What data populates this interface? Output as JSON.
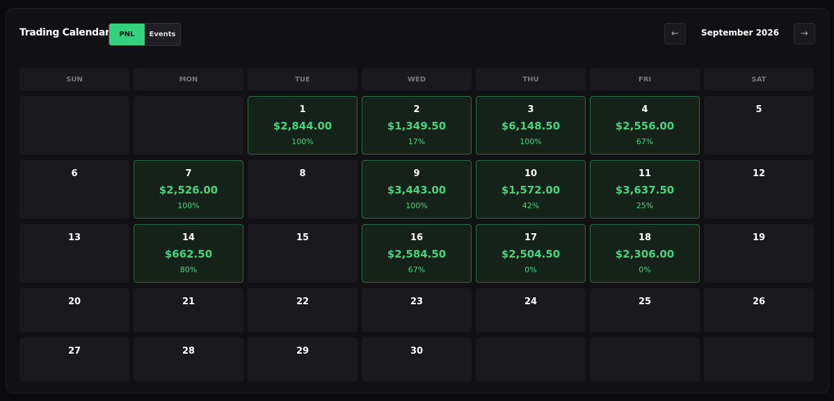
{
  "header": {
    "title": "Trading Calendar",
    "tabs": [
      "PNL",
      "Events"
    ],
    "month": "September 2026",
    "prev": "←",
    "next": "→"
  },
  "weekdays": [
    "SUN",
    "MON",
    "TUE",
    "WED",
    "THU",
    "FRI",
    "SAT"
  ],
  "weeks": [
    [
      null,
      null,
      {
        "day": 1,
        "pnl": "$2,844.00",
        "pct": "100%"
      },
      {
        "day": 2,
        "pnl": "$1,349.50",
        "pct": "17%"
      },
      {
        "day": 3,
        "pnl": "$6,148.50",
        "pct": "100%"
      },
      {
        "day": 4,
        "pnl": "$2,556.00",
        "pct": "67%"
      },
      {
        "day": 5
      }
    ],
    [
      {
        "day": 6
      },
      {
        "day": 7,
        "pnl": "$2,526.00",
        "pct": "100%"
      },
      {
        "day": 8
      },
      {
        "day": 9,
        "pnl": "$3,443.00",
        "pct": "100%"
      },
      {
        "day": 10,
        "pnl": "$1,572.00",
        "pct": "42%"
      },
      {
        "day": 11,
        "pnl": "$3,637.50",
        "pct": "25%"
      },
      {
        "day": 12
      }
    ],
    [
      {
        "day": 13
      },
      {
        "day": 14,
        "pnl": "$662.50",
        "pct": "80%"
      },
      {
        "day": 15
      },
      {
        "day": 16,
        "pnl": "$2,584.50",
        "pct": "67%"
      },
      {
        "day": 17,
        "pnl": "$2,504.50",
        "pct": "0%"
      },
      {
        "day": 18,
        "pnl": "$2,306.00",
        "pct": "0%"
      },
      {
        "day": 19
      }
    ],
    [
      {
        "day": 20
      },
      {
        "day": 21
      },
      {
        "day": 22
      },
      {
        "day": 23
      },
      {
        "day": 24
      },
      {
        "day": 25
      },
      {
        "day": 26
      }
    ],
    [
      {
        "day": 27
      },
      {
        "day": 28
      },
      {
        "day": 29
      },
      {
        "day": 30
      },
      null,
      null,
      null
    ]
  ]
}
